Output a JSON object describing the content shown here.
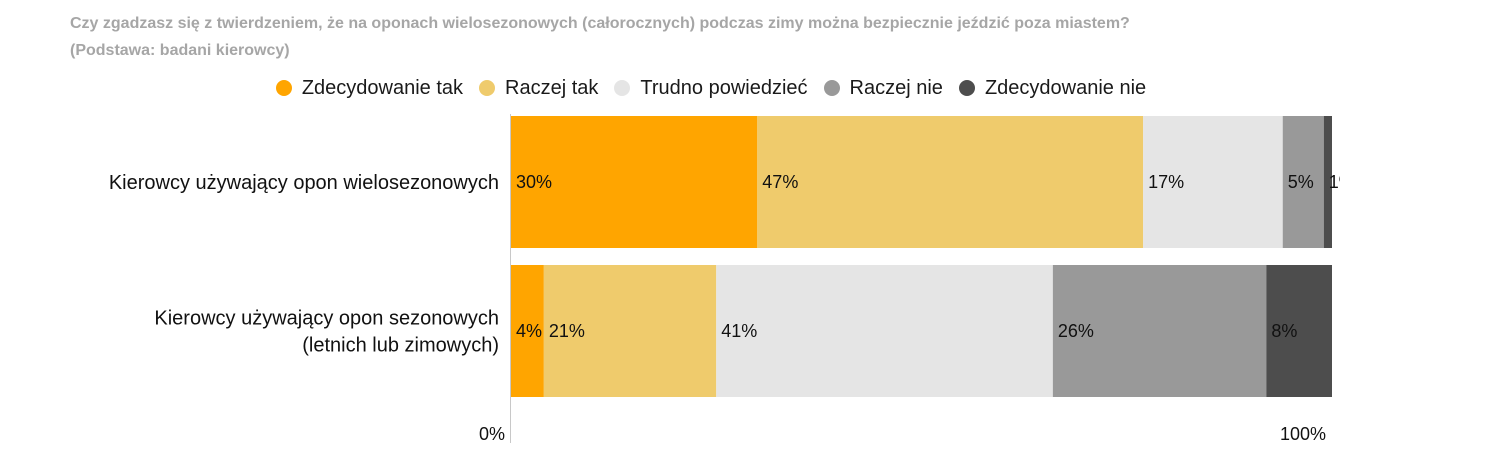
{
  "chart_data": {
    "type": "bar",
    "orientation": "horizontal",
    "stacking": "percent",
    "title": "Czy zgadzasz się z twierdzeniem, że na oponach wielosezonowych (całorocznych) podczas zimy można bezpiecznie jeździć poza miastem?",
    "subtitle": "(Podstawa: badani kierowcy)",
    "categories": [
      "Kierowcy używający opon wielosezonowych",
      "Kierowcy używający opon sezonowych\n(letnich lub zimowych)"
    ],
    "series": [
      {
        "name": "Zdecydowanie tak",
        "values": [
          30,
          4
        ],
        "color": "#FFA500"
      },
      {
        "name": "Raczej tak",
        "values": [
          47,
          21
        ],
        "color": "#EFCB6C"
      },
      {
        "name": "Trudno powiedzieć",
        "values": [
          17,
          41
        ],
        "color": "#E5E5E5"
      },
      {
        "name": "Raczej nie",
        "values": [
          5,
          26
        ],
        "color": "#999999"
      },
      {
        "name": "Zdecydowanie nie",
        "values": [
          1,
          8
        ],
        "color": "#4D4D4D"
      }
    ],
    "value_unit": "%",
    "xlim": [
      0,
      100
    ],
    "x_ticks": [
      {
        "value": 0,
        "label": "0%"
      },
      {
        "value": 100,
        "label": "100%"
      }
    ],
    "xlabel": "",
    "ylabel": "",
    "legend": "top-center",
    "grid": false
  }
}
